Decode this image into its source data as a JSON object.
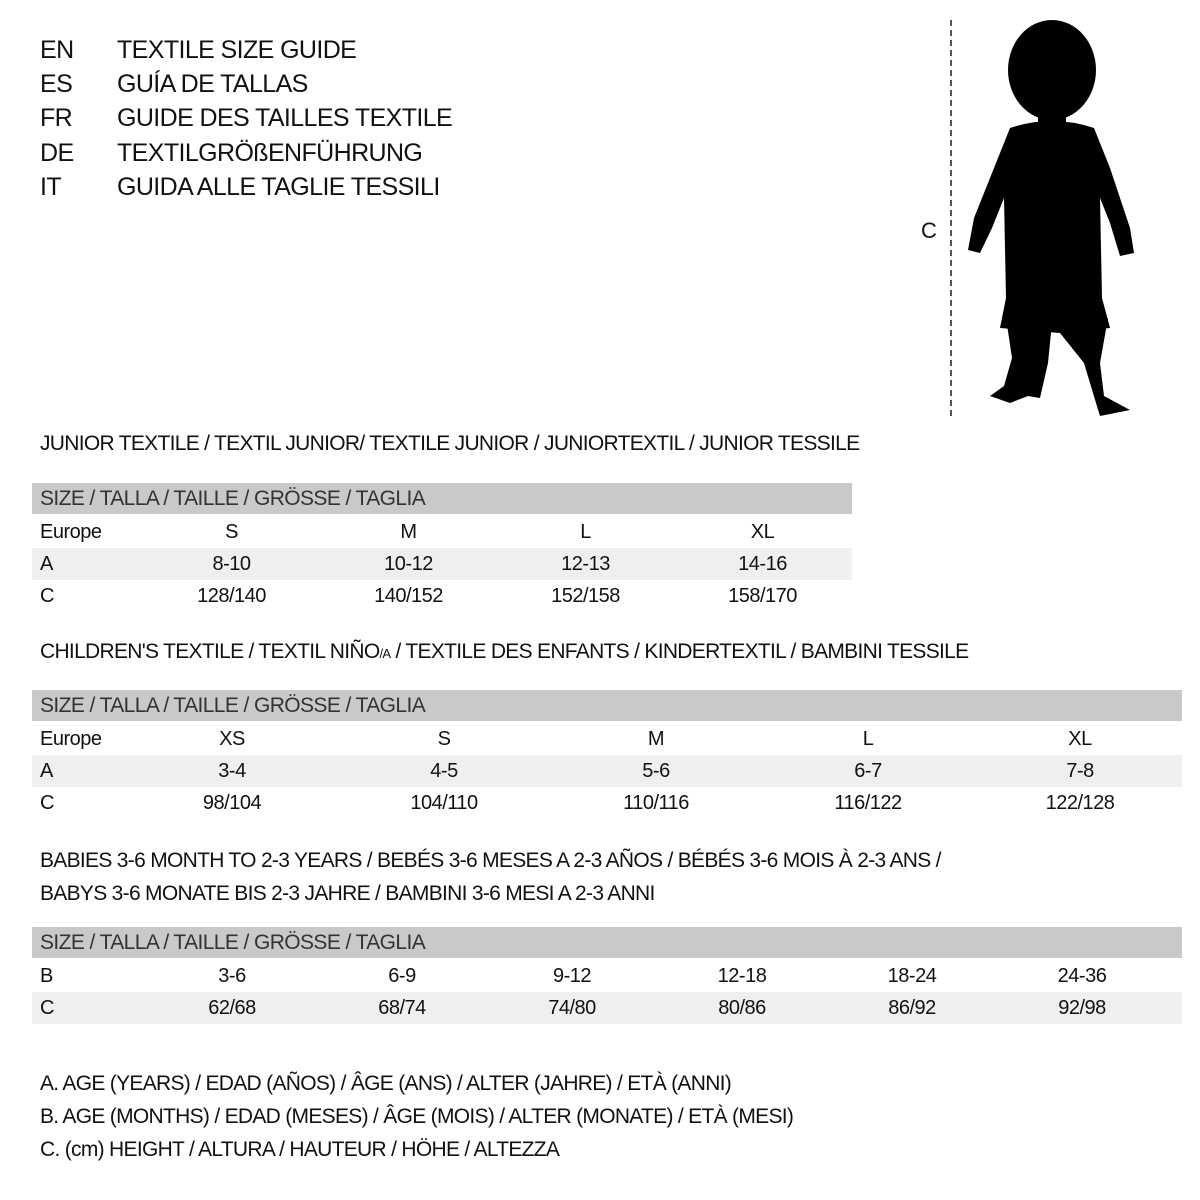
{
  "titles": [
    {
      "code": "EN",
      "title": "TEXTILE SIZE GUIDE"
    },
    {
      "code": "ES",
      "title": "GUÍA DE TALLAS"
    },
    {
      "code": "FR",
      "title": "GUIDE DES TAILLES TEXTILE"
    },
    {
      "code": "DE",
      "title": "TEXTILGRÖßENFÜHRUNG"
    },
    {
      "code": "IT",
      "title": "GUIDA ALLE TAGLIE TESSILI"
    }
  ],
  "figure": {
    "measure_label": "C"
  },
  "junior": {
    "heading": "JUNIOR TEXTILE / TEXTIL JUNIOR/ TEXTILE JUNIOR / JUNIORTEXTIL / JUNIOR TESSILE",
    "header": "SIZE / TALLA / TAILLE / GRÖSSE / TAGLIA",
    "rows": [
      {
        "label": "Europe",
        "values": [
          "S",
          "M",
          "L",
          "XL"
        ]
      },
      {
        "label": "A",
        "values": [
          "8-10",
          "10-12",
          "12-13",
          "14-16"
        ]
      },
      {
        "label": "C",
        "values": [
          "128/140",
          "140/152",
          "152/158",
          "158/170"
        ]
      }
    ]
  },
  "children": {
    "heading_a": "CHILDREN'S TEXTILE / TEXTIL NIÑO",
    "heading_sub": "/A",
    "heading_b": " / TEXTILE DES ENFANTS / KINDERTEXTIL / BAMBINI TESSILE",
    "header": "SIZE / TALLA / TAILLE / GRÖSSE / TAGLIA",
    "rows": [
      {
        "label": "Europe",
        "values": [
          "XS",
          "S",
          "M",
          "L",
          "XL"
        ]
      },
      {
        "label": "A",
        "values": [
          "3-4",
          "4-5",
          "5-6",
          "6-7",
          "7-8"
        ]
      },
      {
        "label": "C",
        "values": [
          "98/104",
          "104/110",
          "110/116",
          "116/122",
          "122/128"
        ]
      }
    ]
  },
  "babies": {
    "heading_1": "BABIES 3-6 MONTH TO 2-3 YEARS / BEBÉS 3-6 MESES A 2-3 AÑOS / BÉBÉS 3-6 MOIS À 2-3 ANS /",
    "heading_2": "BABYS 3-6 MONATE BIS 2-3 JAHRE / BAMBINI 3-6 MESI A 2-3 ANNI",
    "header": "SIZE / TALLA / TAILLE / GRÖSSE / TAGLIA",
    "rows": [
      {
        "label": "B",
        "values": [
          "3-6",
          "6-9",
          "9-12",
          "12-18",
          "18-24",
          "24-36"
        ]
      },
      {
        "label": "C",
        "values": [
          "62/68",
          "68/74",
          "74/80",
          "80/86",
          "86/92",
          "92/98"
        ]
      }
    ]
  },
  "legend": [
    "A. AGE (YEARS) / EDAD (AÑOS) / ÂGE (ANS) / ALTER (JAHRE) / ETÀ (ANNI)",
    "B. AGE (MONTHS) / EDAD (MESES) / ÂGE (MOIS) / ALTER (MONATE) / ETÀ (MESI)",
    "C. (cm) HEIGHT / ALTURA / HAUTEUR / HÖHE / ALTEZZA"
  ],
  "colors": {
    "header_bar": "#c9c9c9",
    "shaded_row": "#efefef"
  }
}
